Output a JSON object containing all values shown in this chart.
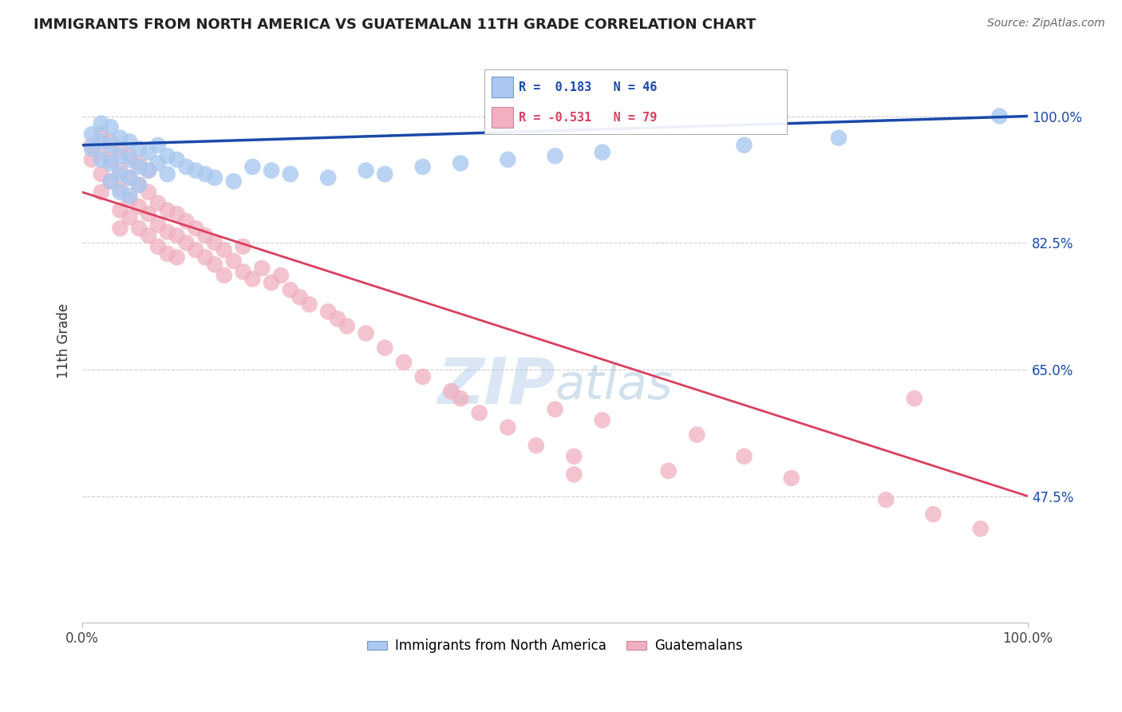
{
  "title": "IMMIGRANTS FROM NORTH AMERICA VS GUATEMALAN 11TH GRADE CORRELATION CHART",
  "source": "Source: ZipAtlas.com",
  "ylabel": "11th Grade",
  "watermark": "ZIPAtlas",
  "legend_blue_label": "Immigrants from North America",
  "legend_pink_label": "Guatemalans",
  "blue_r": 0.183,
  "blue_n": 46,
  "pink_r": -0.531,
  "pink_n": 79,
  "blue_color": "#aac8f0",
  "pink_color": "#f0b0c0",
  "blue_line_color": "#1a4aaa",
  "pink_line_color": "#d94060",
  "xlim": [
    0.0,
    1.0
  ],
  "ylim": [
    0.3,
    1.08
  ],
  "yticks": [
    0.475,
    0.65,
    0.825,
    1.0
  ],
  "ytick_labels": [
    "47.5%",
    "65.0%",
    "82.5%",
    "100.0%"
  ],
  "xtick_labels": [
    "0.0%",
    "100.0%"
  ],
  "xticks": [
    0.0,
    1.0
  ],
  "blue_x": [
    0.01,
    0.01,
    0.02,
    0.02,
    0.02,
    0.03,
    0.03,
    0.03,
    0.03,
    0.04,
    0.04,
    0.04,
    0.04,
    0.05,
    0.05,
    0.05,
    0.05,
    0.06,
    0.06,
    0.06,
    0.07,
    0.07,
    0.08,
    0.08,
    0.09,
    0.09,
    0.1,
    0.11,
    0.12,
    0.13,
    0.14,
    0.16,
    0.18,
    0.2,
    0.22,
    0.26,
    0.3,
    0.32,
    0.36,
    0.4,
    0.45,
    0.5,
    0.55,
    0.7,
    0.8,
    0.97
  ],
  "blue_y": [
    0.975,
    0.955,
    0.99,
    0.965,
    0.94,
    0.985,
    0.96,
    0.935,
    0.91,
    0.97,
    0.945,
    0.92,
    0.895,
    0.965,
    0.94,
    0.915,
    0.89,
    0.955,
    0.93,
    0.905,
    0.95,
    0.925,
    0.96,
    0.935,
    0.945,
    0.92,
    0.94,
    0.93,
    0.925,
    0.92,
    0.915,
    0.91,
    0.93,
    0.925,
    0.92,
    0.915,
    0.925,
    0.92,
    0.93,
    0.935,
    0.94,
    0.945,
    0.95,
    0.96,
    0.97,
    1.0
  ],
  "pink_x": [
    0.01,
    0.01,
    0.02,
    0.02,
    0.02,
    0.02,
    0.03,
    0.03,
    0.03,
    0.04,
    0.04,
    0.04,
    0.04,
    0.04,
    0.05,
    0.05,
    0.05,
    0.05,
    0.06,
    0.06,
    0.06,
    0.06,
    0.07,
    0.07,
    0.07,
    0.07,
    0.08,
    0.08,
    0.08,
    0.09,
    0.09,
    0.09,
    0.1,
    0.1,
    0.1,
    0.11,
    0.11,
    0.12,
    0.12,
    0.13,
    0.13,
    0.14,
    0.14,
    0.15,
    0.15,
    0.16,
    0.17,
    0.17,
    0.18,
    0.19,
    0.2,
    0.21,
    0.22,
    0.23,
    0.24,
    0.26,
    0.27,
    0.28,
    0.3,
    0.32,
    0.34,
    0.36,
    0.39,
    0.4,
    0.42,
    0.45,
    0.48,
    0.5,
    0.52,
    0.55,
    0.62,
    0.65,
    0.7,
    0.75,
    0.85,
    0.9,
    0.88,
    0.95,
    0.52
  ],
  "pink_y": [
    0.96,
    0.94,
    0.975,
    0.95,
    0.92,
    0.895,
    0.965,
    0.94,
    0.91,
    0.955,
    0.925,
    0.9,
    0.87,
    0.845,
    0.945,
    0.915,
    0.885,
    0.86,
    0.935,
    0.905,
    0.875,
    0.845,
    0.925,
    0.895,
    0.865,
    0.835,
    0.88,
    0.85,
    0.82,
    0.87,
    0.84,
    0.81,
    0.865,
    0.835,
    0.805,
    0.855,
    0.825,
    0.845,
    0.815,
    0.835,
    0.805,
    0.825,
    0.795,
    0.815,
    0.78,
    0.8,
    0.82,
    0.785,
    0.775,
    0.79,
    0.77,
    0.78,
    0.76,
    0.75,
    0.74,
    0.73,
    0.72,
    0.71,
    0.7,
    0.68,
    0.66,
    0.64,
    0.62,
    0.61,
    0.59,
    0.57,
    0.545,
    0.595,
    0.53,
    0.58,
    0.51,
    0.56,
    0.53,
    0.5,
    0.47,
    0.45,
    0.61,
    0.43,
    0.505
  ],
  "blue_line_y0": 0.96,
  "blue_line_y1": 1.0,
  "pink_line_y0": 0.895,
  "pink_line_y1": 0.475,
  "grid_color": "#cccccc",
  "bg_color": "#ffffff",
  "title_color": "#222222",
  "source_color": "#666666"
}
